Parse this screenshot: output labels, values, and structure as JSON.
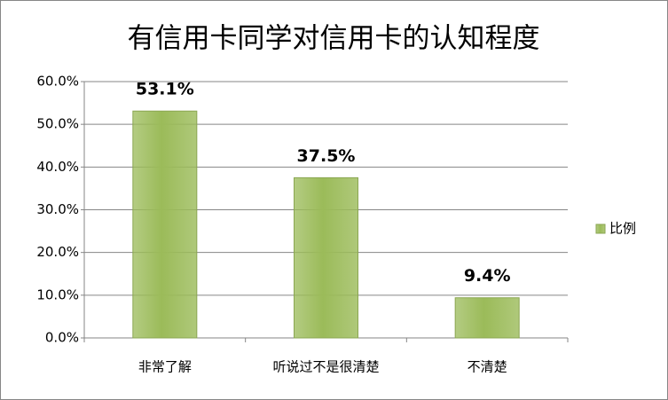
{
  "chart_data": {
    "type": "bar",
    "title": "有信用卡同学对信用卡的认知程度",
    "categories": [
      "非常了解",
      "听说过不是很清楚",
      "不清楚"
    ],
    "series": [
      {
        "name": "比例",
        "color": "#9bbb59",
        "values": [
          53.1,
          37.5,
          9.4
        ],
        "value_labels": [
          "53.1%",
          "37.5%",
          "9.4%"
        ]
      }
    ],
    "ylim": [
      0,
      60
    ],
    "yticks": [
      {
        "value": 0,
        "label": "0.0%"
      },
      {
        "value": 10,
        "label": "10.0%"
      },
      {
        "value": 20,
        "label": "20.0%"
      },
      {
        "value": 30,
        "label": "30.0%"
      },
      {
        "value": 40,
        "label": "40.0%"
      },
      {
        "value": 50,
        "label": "50.0%"
      },
      {
        "value": 60,
        "label": "60.0%"
      }
    ],
    "grid": true,
    "legend": "right"
  }
}
